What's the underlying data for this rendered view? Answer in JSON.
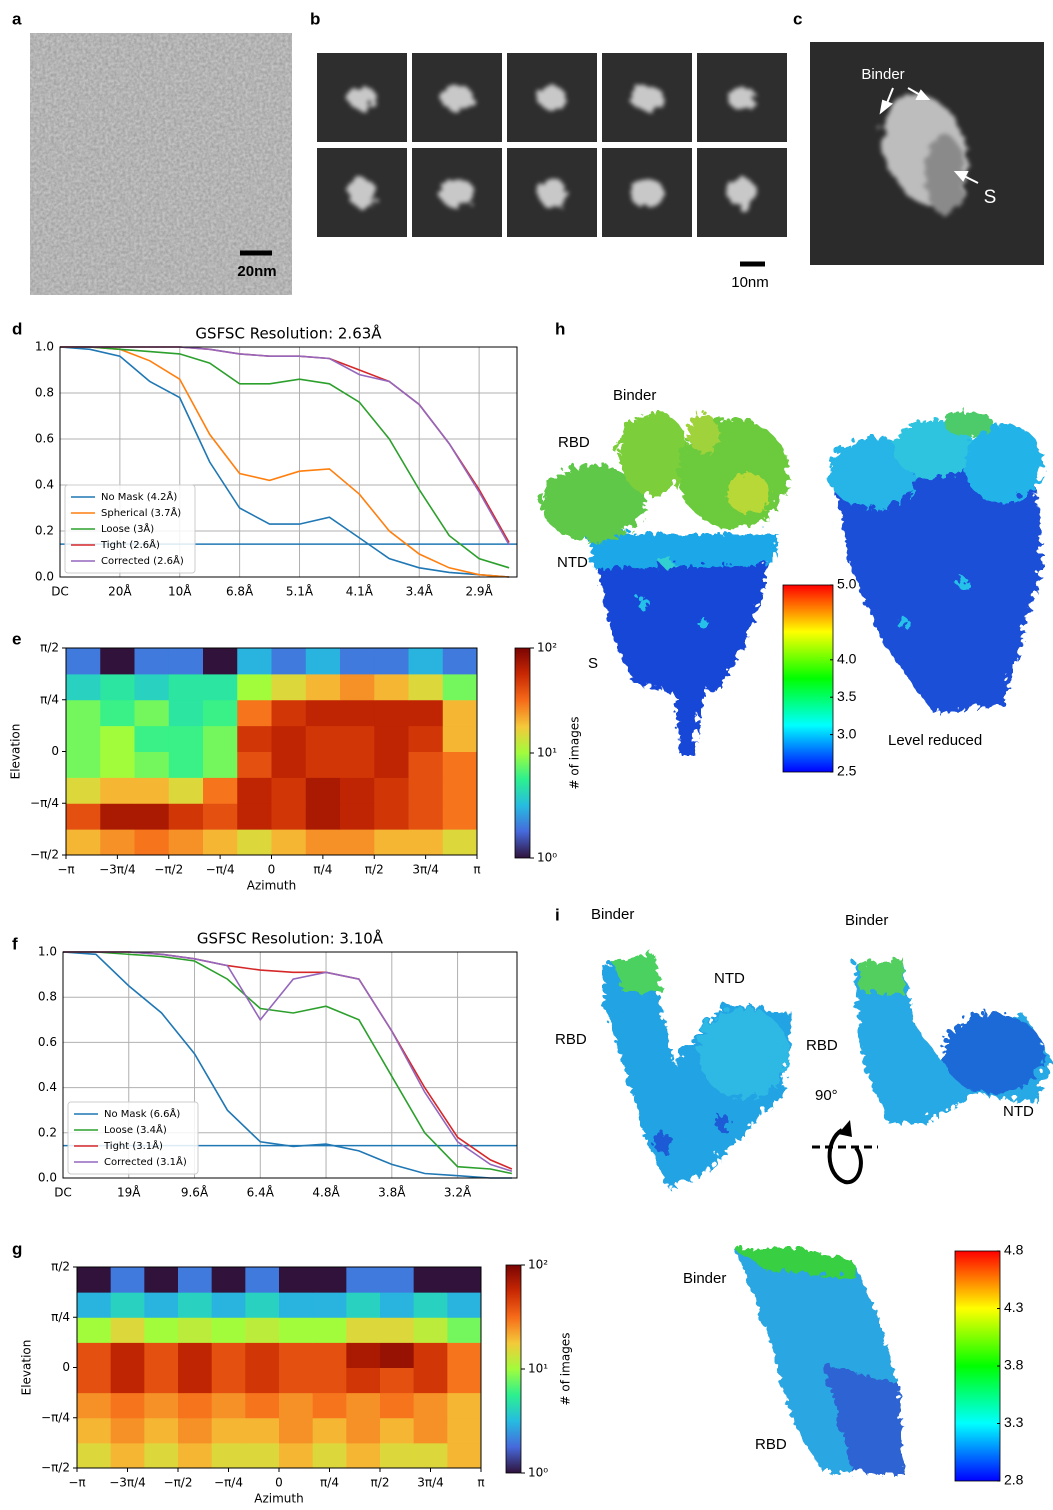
{
  "panel_labels": [
    "a",
    "b",
    "c",
    "d",
    "e",
    "h",
    "f",
    "i",
    "g"
  ],
  "micrograph": {
    "scale_bar": "20nm"
  },
  "class_averages": {
    "scale_bar": "10nm"
  },
  "single_class": {
    "annotations": [
      "Binder",
      "S"
    ]
  },
  "chart_data": [
    {
      "type": "line",
      "title": "GSFSC Resolution: 2.63Å",
      "x": [
        0,
        0.0245,
        0.049,
        0.0735,
        0.098,
        0.1225,
        0.147,
        0.1715,
        0.196,
        0.2205,
        0.245,
        0.2695,
        0.294,
        0.3185,
        0.343,
        0.3675
      ],
      "xlim": [
        0,
        0.374
      ],
      "xticks": [
        {
          "value": 0,
          "label": "DC"
        },
        {
          "value": 0.049,
          "label": "20Å"
        },
        {
          "value": 0.098,
          "label": "10Å"
        },
        {
          "value": 0.147,
          "label": "6.8Å"
        },
        {
          "value": 0.196,
          "label": "5.1Å"
        },
        {
          "value": 0.245,
          "label": "4.1Å"
        },
        {
          "value": 0.294,
          "label": "3.4Å"
        },
        {
          "value": 0.343,
          "label": "2.9Å"
        }
      ],
      "ylim": [
        0,
        1
      ],
      "yticks": [
        {
          "value": 0,
          "label": "0.0"
        },
        0.2,
        0.4,
        0.6,
        0.8,
        {
          "value": 1,
          "label": "1.0"
        }
      ],
      "threshold": 0.143,
      "threshold_color": "#1f77b4",
      "grid": true,
      "legend": "lower left",
      "series": [
        {
          "name": "No Mask (4.2Å)",
          "color": "#1f77b4",
          "values": [
            1,
            0.99,
            0.96,
            0.85,
            0.78,
            0.5,
            0.3,
            0.23,
            0.23,
            0.26,
            0.17,
            0.08,
            0.04,
            0.02,
            0.01,
            0
          ]
        },
        {
          "name": "Spherical (3.7Å)",
          "color": "#ff7f0e",
          "values": [
            1,
            1,
            0.99,
            0.94,
            0.86,
            0.62,
            0.45,
            0.42,
            0.46,
            0.47,
            0.36,
            0.2,
            0.1,
            0.04,
            0.01,
            0
          ]
        },
        {
          "name": "Loose (3Å)",
          "color": "#2ca02c",
          "values": [
            1,
            1,
            0.99,
            0.98,
            0.97,
            0.93,
            0.84,
            0.84,
            0.86,
            0.84,
            0.76,
            0.6,
            0.38,
            0.18,
            0.08,
            0.04
          ]
        },
        {
          "name": "Tight (2.6Å)",
          "color": "#d62728",
          "values": [
            1,
            1,
            1,
            1,
            1,
            0.99,
            0.97,
            0.96,
            0.96,
            0.95,
            0.9,
            0.85,
            0.75,
            0.58,
            0.38,
            0.15
          ]
        },
        {
          "name": "Corrected (2.6Å)",
          "color": "#9467bd",
          "values": [
            1,
            1,
            1,
            1,
            1,
            0.99,
            0.97,
            0.96,
            0.96,
            0.95,
            0.88,
            0.85,
            0.75,
            0.58,
            0.37,
            0.14
          ]
        }
      ]
    },
    {
      "type": "heatmap",
      "x_label": "Azimuth",
      "y_label": "Elevation",
      "colorbar_label": "# of images",
      "xbins": [
        -3.1416,
        -2.618,
        -2.0944,
        -1.5708,
        -1.0472,
        -0.5236,
        0,
        0.5236,
        1.0472,
        1.5708,
        2.0944,
        2.618,
        3.1416
      ],
      "ybins": [
        -1.5708,
        -1.1781,
        -0.7854,
        -0.3927,
        0,
        0.3927,
        0.7854,
        1.1781,
        1.5708
      ],
      "z": [
        [
          20,
          25,
          30,
          25,
          20,
          15,
          20,
          25,
          25,
          20,
          20,
          15
        ],
        [
          40,
          70,
          70,
          50,
          40,
          60,
          50,
          70,
          60,
          50,
          40,
          30
        ],
        [
          15,
          20,
          20,
          15,
          30,
          60,
          50,
          70,
          60,
          50,
          40,
          30
        ],
        [
          8,
          10,
          8,
          6,
          8,
          40,
          60,
          50,
          50,
          60,
          40,
          30
        ],
        [
          8,
          10,
          6,
          6,
          8,
          50,
          60,
          50,
          50,
          60,
          50,
          20
        ],
        [
          8,
          6,
          8,
          5,
          6,
          30,
          50,
          60,
          60,
          60,
          60,
          20
        ],
        [
          4,
          5,
          4,
          5,
          5,
          10,
          15,
          20,
          25,
          20,
          15,
          8
        ],
        [
          2,
          1,
          2,
          2,
          1,
          3,
          2,
          3,
          2,
          2,
          3,
          2
        ]
      ],
      "xlim": [
        -3.1416,
        3.1416
      ],
      "xticks": [
        {
          "value": -3.1416,
          "label": "−π"
        },
        {
          "value": -2.3562,
          "label": "−3π/4"
        },
        {
          "value": -1.5708,
          "label": "−π/2"
        },
        {
          "value": -0.7854,
          "label": "−π/4"
        },
        0,
        {
          "value": 0.7854,
          "label": "π/4"
        },
        {
          "value": 1.5708,
          "label": "π/2"
        },
        {
          "value": 2.3562,
          "label": "3π/4"
        },
        {
          "value": 3.1416,
          "label": "π"
        }
      ],
      "ylim": [
        -1.5708,
        1.5708
      ],
      "yticks": [
        {
          "value": -1.5708,
          "label": "−π/2"
        },
        {
          "value": -0.7854,
          "label": "−π/4"
        },
        0,
        {
          "value": 0.7854,
          "label": "π/4"
        },
        {
          "value": 1.5708,
          "label": "π/2"
        }
      ],
      "log_color": true,
      "clim": [
        1,
        100
      ],
      "cticks": [
        {
          "value": 1,
          "label": "10⁰"
        },
        {
          "value": 10,
          "label": "10¹"
        },
        {
          "value": 100,
          "label": "10²"
        }
      ],
      "colormap": [
        "#30123b",
        "#4669db",
        "#26bce1",
        "#2cf08f",
        "#a2fc3c",
        "#f4c93a",
        "#f66b19",
        "#c82803",
        "#7a0403"
      ]
    },
    {
      "type": "line",
      "title": "GSFSC Resolution: 3.10Å",
      "x": [
        0,
        0.026,
        0.052,
        0.078,
        0.104,
        0.13,
        0.156,
        0.182,
        0.208,
        0.234,
        0.26,
        0.286,
        0.312,
        0.338,
        0.355
      ],
      "xlim": [
        0,
        0.359
      ],
      "xticks": [
        {
          "value": 0,
          "label": "DC"
        },
        {
          "value": 0.052,
          "label": "19Å"
        },
        {
          "value": 0.104,
          "label": "9.6Å"
        },
        {
          "value": 0.156,
          "label": "6.4Å"
        },
        {
          "value": 0.208,
          "label": "4.8Å"
        },
        {
          "value": 0.26,
          "label": "3.8Å"
        },
        {
          "value": 0.312,
          "label": "3.2Å"
        }
      ],
      "ylim": [
        0,
        1
      ],
      "yticks": [
        {
          "value": 0,
          "label": "0.0"
        },
        0.2,
        0.4,
        0.6,
        0.8,
        {
          "value": 1,
          "label": "1.0"
        }
      ],
      "threshold": 0.143,
      "threshold_color": "#1f77b4",
      "grid": true,
      "legend": "lower left",
      "series": [
        {
          "name": "No Mask (6.6Å)",
          "color": "#1f77b4",
          "values": [
            1,
            0.99,
            0.85,
            0.73,
            0.55,
            0.3,
            0.16,
            0.14,
            0.15,
            0.12,
            0.06,
            0.02,
            0.01,
            0,
            0
          ]
        },
        {
          "name": "Loose (3.4Å)",
          "color": "#2ca02c",
          "values": [
            1,
            1,
            0.99,
            0.98,
            0.96,
            0.88,
            0.75,
            0.73,
            0.76,
            0.7,
            0.45,
            0.2,
            0.05,
            0.04,
            0.02
          ]
        },
        {
          "name": "Tight (3.1Å)",
          "color": "#d62728",
          "values": [
            1,
            1,
            1,
            0.99,
            0.97,
            0.94,
            0.92,
            0.91,
            0.91,
            0.88,
            0.65,
            0.4,
            0.18,
            0.08,
            0.04
          ]
        },
        {
          "name": "Corrected (3.1Å)",
          "color": "#9467bd",
          "values": [
            1,
            1,
            1,
            0.99,
            0.97,
            0.94,
            0.7,
            0.88,
            0.91,
            0.88,
            0.65,
            0.38,
            0.16,
            0.06,
            0.03
          ]
        }
      ]
    },
    {
      "type": "heatmap",
      "x_label": "Azimuth",
      "y_label": "Elevation",
      "colorbar_label": "# of images",
      "xbins": [
        -3.1416,
        -2.618,
        -2.0944,
        -1.5708,
        -1.0472,
        -0.5236,
        0,
        0.5236,
        1.0472,
        1.5708,
        2.0944,
        2.618,
        3.1416
      ],
      "ybins": [
        -1.5708,
        -1.1781,
        -0.7854,
        -0.3927,
        0,
        0.3927,
        0.7854,
        1.1781,
        1.5708
      ],
      "z": [
        [
          15,
          20,
          15,
          20,
          15,
          15,
          20,
          15,
          20,
          15,
          15,
          20
        ],
        [
          20,
          25,
          20,
          25,
          20,
          20,
          25,
          20,
          25,
          20,
          25,
          20
        ],
        [
          25,
          30,
          25,
          30,
          25,
          30,
          25,
          30,
          25,
          30,
          25,
          20
        ],
        [
          40,
          60,
          40,
          60,
          40,
          50,
          40,
          40,
          50,
          40,
          50,
          30
        ],
        [
          40,
          60,
          40,
          60,
          40,
          50,
          40,
          40,
          70,
          80,
          50,
          30
        ],
        [
          10,
          15,
          10,
          12,
          10,
          12,
          10,
          10,
          15,
          15,
          12,
          8
        ],
        [
          3,
          4,
          3,
          4,
          3,
          4,
          3,
          3,
          4,
          3,
          4,
          3
        ],
        [
          1,
          2,
          1,
          2,
          1,
          2,
          1,
          1,
          2,
          2,
          1,
          1
        ]
      ],
      "xlim": [
        -3.1416,
        3.1416
      ],
      "xticks": [
        {
          "value": -3.1416,
          "label": "−π"
        },
        {
          "value": -2.3562,
          "label": "−3π/4"
        },
        {
          "value": -1.5708,
          "label": "−π/2"
        },
        {
          "value": -0.7854,
          "label": "−π/4"
        },
        0,
        {
          "value": 0.7854,
          "label": "π/4"
        },
        {
          "value": 1.5708,
          "label": "π/2"
        },
        {
          "value": 2.3562,
          "label": "3π/4"
        },
        {
          "value": 3.1416,
          "label": "π"
        }
      ],
      "ylim": [
        -1.5708,
        1.5708
      ],
      "yticks": [
        {
          "value": -1.5708,
          "label": "−π/2"
        },
        {
          "value": -0.7854,
          "label": "−π/4"
        },
        0,
        {
          "value": 0.7854,
          "label": "π/4"
        },
        {
          "value": 1.5708,
          "label": "π/2"
        }
      ],
      "log_color": true,
      "clim": [
        1,
        100
      ],
      "cticks": [
        {
          "value": 1,
          "label": "10⁰"
        },
        {
          "value": 10,
          "label": "10¹"
        },
        {
          "value": 100,
          "label": "10²"
        }
      ],
      "colormap": [
        "#30123b",
        "#4669db",
        "#26bce1",
        "#2cf08f",
        "#a2fc3c",
        "#f4c93a",
        "#f66b19",
        "#c82803",
        "#7a0403"
      ]
    }
  ],
  "map_h": {
    "annotations": [
      "Binder",
      "RBD",
      "NTD",
      "S",
      "Level reduced"
    ],
    "colorbar": {
      "lim": [
        2.5,
        5
      ],
      "colors": [
        "#0000ff",
        "#00ffff",
        "#00ff00",
        "#ffff00",
        "#ff0000"
      ],
      "ticks": [
        {
          "value": 5,
          "label": "5.0"
        },
        {
          "value": 4,
          "label": "4.0"
        },
        3.5,
        {
          "value": 3,
          "label": "3.0"
        },
        2.5
      ]
    }
  },
  "map_i": {
    "annotations": [
      "Binder",
      "NTD",
      "RBD",
      "Binder",
      "RBD",
      "90°",
      "NTD"
    ]
  },
  "map_i_zoom": {
    "annotations": [
      "Binder",
      "RBD"
    ],
    "colorbar": {
      "lim": [
        2.8,
        4.8
      ],
      "colors": [
        "#0000ff",
        "#00ffff",
        "#00ff00",
        "#ffff00",
        "#ff0000"
      ],
      "ticks": [
        4.8,
        4.3,
        3.8,
        3.3,
        2.8
      ]
    }
  }
}
